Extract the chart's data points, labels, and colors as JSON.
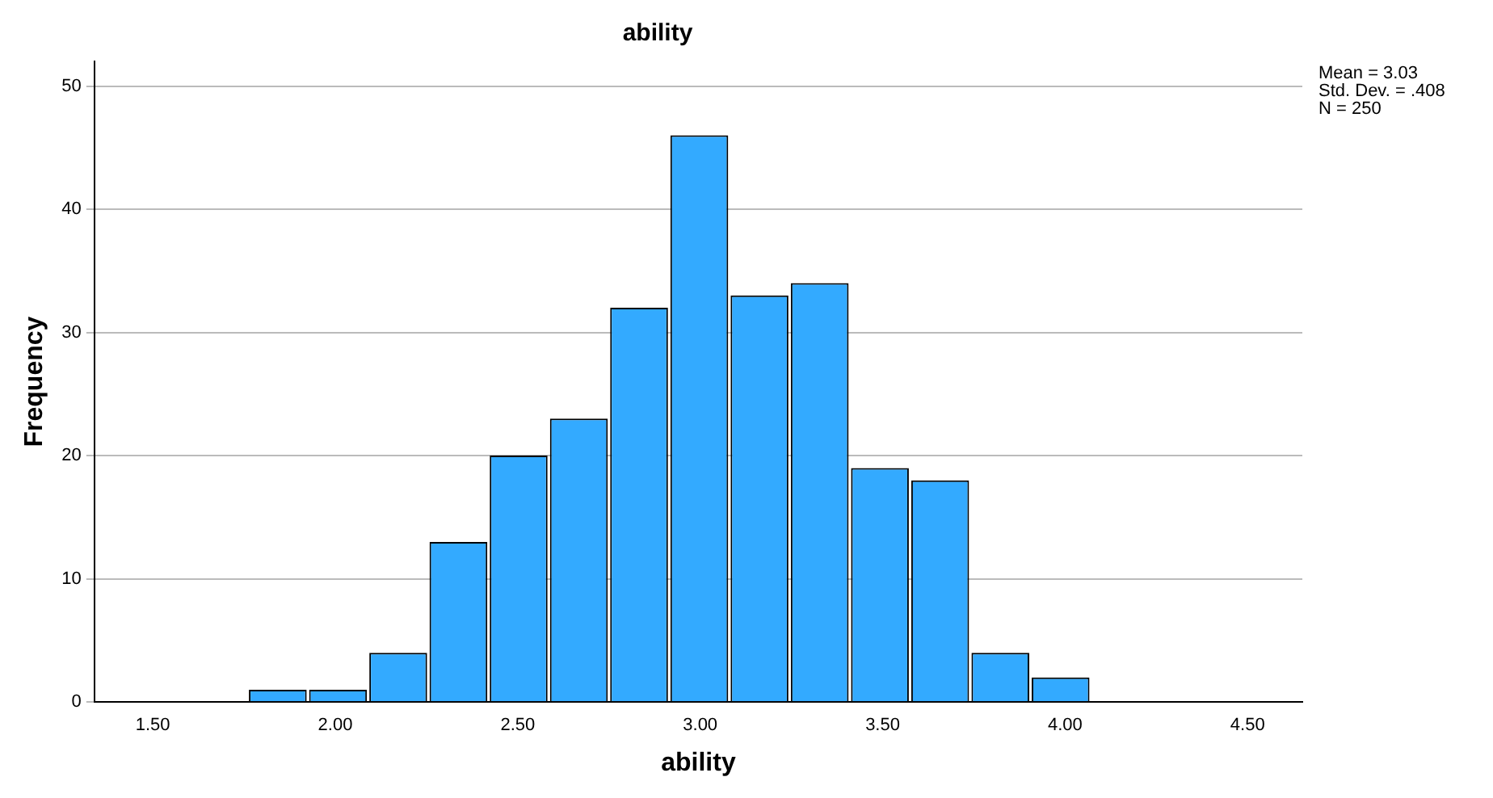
{
  "chart_data": {
    "type": "histogram",
    "title": "ability",
    "xlabel": "ability",
    "ylabel": "Frequency",
    "bins": [
      1.76,
      1.925,
      2.09,
      2.255,
      2.42,
      2.585,
      2.75,
      2.915,
      3.08,
      3.245,
      3.41,
      3.575,
      3.74,
      3.905,
      4.07
    ],
    "values": [
      1,
      1,
      4,
      13,
      20,
      23,
      32,
      46,
      33,
      34,
      19,
      18,
      4,
      2
    ],
    "color": "#33aaff",
    "xlim": [
      1.34,
      4.65
    ],
    "xticks": [
      {
        "value": 1.5,
        "label": "1.50"
      },
      {
        "value": 2,
        "label": "2.00"
      },
      {
        "value": 2.5,
        "label": "2.50"
      },
      {
        "value": 3,
        "label": "3.00"
      },
      {
        "value": 3.5,
        "label": "3.50"
      },
      {
        "value": 4,
        "label": "4.00"
      },
      {
        "value": 4.5,
        "label": "4.50"
      }
    ],
    "ylim": [
      0,
      52
    ],
    "yticks": [
      0,
      10,
      20,
      30,
      40,
      50
    ],
    "grid": "y",
    "legend": false,
    "annotations": [
      "Mean = 3.03",
      "Std. Dev. = .408",
      "N = 250"
    ]
  }
}
